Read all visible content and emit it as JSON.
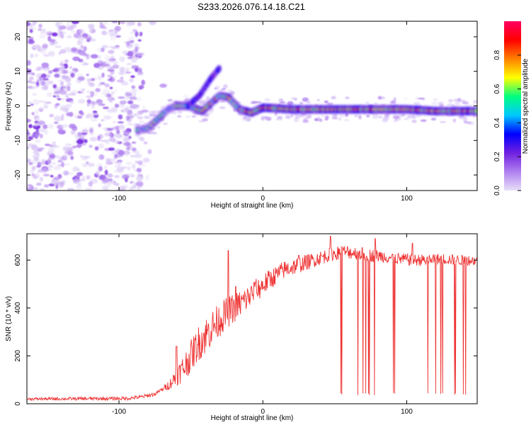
{
  "chart_data": [
    {
      "type": "heatmap",
      "title": "S233.2026.076.14.18.C21",
      "xlabel": "Height of straight line (km)",
      "ylabel": "Frequency (Hz)",
      "xlim": [
        -164,
        149
      ],
      "ylim": [
        -24.5,
        24.5
      ],
      "xticks": [
        -100,
        0,
        100
      ],
      "yticks": [
        -20,
        -10,
        0,
        10,
        20
      ],
      "colorbar": {
        "label": "Normalized spectral amplitude",
        "range": [
          0,
          1
        ],
        "ticks": [
          "0.0",
          "0.2",
          "0.4",
          "0.6",
          "0.8"
        ],
        "colormap": [
          "#e8e0f8",
          "#b080f0",
          "#7020e0",
          "#0000ff",
          "#00c8ff",
          "#00ff80",
          "#ffff00",
          "#ff8000",
          "#ff0000",
          "#ff0060"
        ]
      },
      "ridge": {
        "points": [
          [
            -87,
            -7
          ],
          [
            -80,
            -6.5
          ],
          [
            -72,
            -3.5
          ],
          [
            -66,
            -1
          ],
          [
            -60,
            0
          ],
          [
            -52,
            0
          ],
          [
            -42,
            -1.5
          ],
          [
            -30,
            3
          ],
          [
            -24,
            2.5
          ],
          [
            -16,
            -1
          ],
          [
            -8,
            -2
          ],
          [
            0,
            -0.5
          ],
          [
            20,
            -1
          ],
          [
            40,
            -1
          ],
          [
            60,
            -1
          ],
          [
            80,
            -1
          ],
          [
            100,
            -1
          ],
          [
            120,
            -1.5
          ],
          [
            148,
            -1.5
          ]
        ]
      },
      "branch": {
        "points": [
          [
            -52,
            0
          ],
          [
            -44,
            3
          ],
          [
            -36,
            8
          ],
          [
            -30,
            11
          ]
        ]
      }
    },
    {
      "type": "line",
      "xlabel": "Height of straight line (km)",
      "ylabel": "SNR (10 * v/v)",
      "xlim": [
        -164,
        149
      ],
      "ylim": [
        0,
        710
      ],
      "xticks": [
        -100,
        0,
        100
      ],
      "yticks": [
        0,
        200,
        400,
        600
      ],
      "color": "#ee3333",
      "envelope": [
        [
          -164,
          20
        ],
        [
          -95,
          22
        ],
        [
          -85,
          28
        ],
        [
          -75,
          40
        ],
        [
          -65,
          80
        ],
        [
          -55,
          150
        ],
        [
          -45,
          250
        ],
        [
          -35,
          320
        ],
        [
          -25,
          380
        ],
        [
          -15,
          420
        ],
        [
          -5,
          470
        ],
        [
          5,
          520
        ],
        [
          15,
          560
        ],
        [
          25,
          580
        ],
        [
          35,
          600
        ],
        [
          45,
          620
        ],
        [
          55,
          635
        ],
        [
          65,
          630
        ],
        [
          75,
          620
        ],
        [
          85,
          615
        ],
        [
          95,
          605
        ],
        [
          105,
          600
        ],
        [
          115,
          600
        ],
        [
          125,
          605
        ],
        [
          135,
          600
        ],
        [
          149,
          598
        ]
      ],
      "noise_amplitude": [
        [
          -164,
          6
        ],
        [
          -70,
          8
        ],
        [
          -62,
          30
        ],
        [
          -55,
          60
        ],
        [
          -40,
          80
        ],
        [
          -30,
          70
        ],
        [
          -10,
          55
        ],
        [
          10,
          40
        ],
        [
          40,
          30
        ],
        [
          149,
          22
        ]
      ],
      "dropout_ranges": [
        [
          52,
          92
        ],
        [
          110,
          141
        ]
      ],
      "dropout_level": 35,
      "spikes": [
        [
          -60,
          240
        ],
        [
          -24,
          640
        ],
        [
          -19,
          490
        ],
        [
          -5,
          505
        ],
        [
          25,
          620
        ],
        [
          47,
          700
        ],
        [
          78,
          690
        ],
        [
          104,
          670
        ]
      ]
    }
  ]
}
